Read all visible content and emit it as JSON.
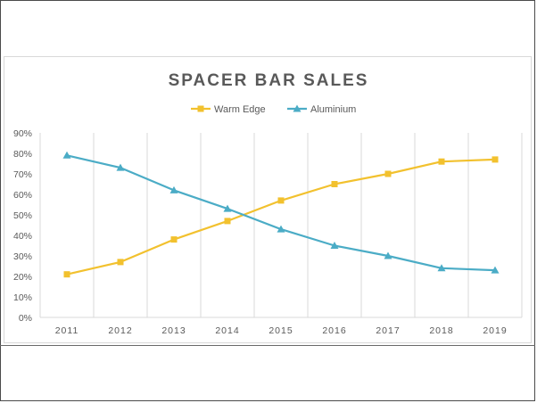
{
  "chart_data": {
    "type": "line",
    "title": "SPACER BAR SALES",
    "xlabel": "",
    "ylabel": "",
    "x": [
      "2011",
      "2012",
      "2013",
      "2014",
      "2015",
      "2016",
      "2017",
      "2018",
      "2019"
    ],
    "ylim": [
      0,
      90
    ],
    "yticks": [
      "0%",
      "10%",
      "20%",
      "30%",
      "40%",
      "50%",
      "60%",
      "70%",
      "80%",
      "90%"
    ],
    "grid": "vertical",
    "legend_position": "top",
    "series": [
      {
        "name": "Warm Edge",
        "color": "#f2c12e",
        "marker": "square",
        "values": [
          21,
          27,
          38,
          47,
          57,
          65,
          70,
          76,
          77
        ]
      },
      {
        "name": "Aluminium",
        "color": "#4bacc6",
        "marker": "triangle",
        "values": [
          79,
          73,
          62,
          53,
          43,
          35,
          30,
          24,
          23
        ]
      }
    ]
  }
}
